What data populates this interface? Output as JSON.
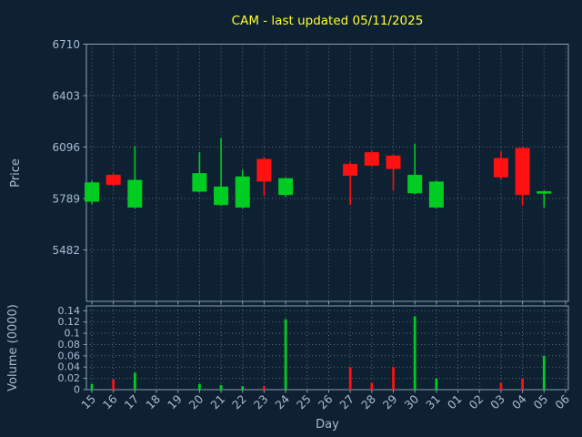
{
  "window_title": "CAM - last updated 05/11/2025",
  "chart_data": {
    "type": "candlestick",
    "title": "CAM - last updated 05/11/2025",
    "xlabel": "Day",
    "legend": "none",
    "grid": "dotted",
    "price_axis": {
      "label": "Price",
      "ticks": [
        5482,
        5789,
        6096,
        6403,
        6710
      ],
      "range": [
        5175,
        6710
      ]
    },
    "volume_axis": {
      "label": "Volume (0000)",
      "ticks": [
        0,
        0.02,
        0.04,
        0.06,
        0.08,
        0.1,
        0.12,
        0.14
      ],
      "range": [
        0,
        0.1485
      ]
    },
    "x_ticks": [
      "15",
      "16",
      "17",
      "18",
      "19",
      "20",
      "21",
      "22",
      "23",
      "24",
      "25",
      "26",
      "27",
      "28",
      "29",
      "30",
      "31",
      "01",
      "02",
      "03",
      "04",
      "05",
      "06"
    ],
    "colors": {
      "up": "#00cc22",
      "down": "#ff1111",
      "background": "#0e2132",
      "title": "#ffff33",
      "axis_text": "#a8bcd4",
      "spine": "#8aa0b6",
      "grid": "#93a6b8"
    },
    "candles": [
      {
        "day": "15",
        "open": 5770,
        "high": 5895,
        "low": 5755,
        "close": 5885,
        "volume": 0.01
      },
      {
        "day": "16",
        "open": 5930,
        "high": 5940,
        "low": 5865,
        "close": 5870,
        "volume": 0.018
      },
      {
        "day": "17",
        "open": 5735,
        "high": 6100,
        "low": 5730,
        "close": 5900,
        "volume": 0.03
      },
      {
        "day": "20",
        "open": 5830,
        "high": 6065,
        "low": 5825,
        "close": 5940,
        "volume": 0.01
      },
      {
        "day": "21",
        "open": 5750,
        "high": 6150,
        "low": 5745,
        "close": 5860,
        "volume": 0.008
      },
      {
        "day": "22",
        "open": 5735,
        "high": 5960,
        "low": 5730,
        "close": 5920,
        "volume": 0.006
      },
      {
        "day": "23",
        "open": 6025,
        "high": 6035,
        "low": 5805,
        "close": 5890,
        "volume": 0.006
      },
      {
        "day": "24",
        "open": 5810,
        "high": 5915,
        "low": 5800,
        "close": 5910,
        "volume": 0.125
      },
      {
        "day": "27",
        "open": 5995,
        "high": 6005,
        "low": 5750,
        "close": 5925,
        "volume": 0.04
      },
      {
        "day": "28",
        "open": 6065,
        "high": 6070,
        "low": 5980,
        "close": 5985,
        "volume": 0.012
      },
      {
        "day": "29",
        "open": 6045,
        "high": 6050,
        "low": 5835,
        "close": 5965,
        "volume": 0.04
      },
      {
        "day": "30",
        "open": 5820,
        "high": 6115,
        "low": 5815,
        "close": 5930,
        "volume": 0.13
      },
      {
        "day": "31",
        "open": 5735,
        "high": 5895,
        "low": 5730,
        "close": 5890,
        "volume": 0.02
      },
      {
        "day": "03",
        "open": 6030,
        "high": 6070,
        "low": 5905,
        "close": 5915,
        "volume": 0.012
      },
      {
        "day": "04",
        "open": 6090,
        "high": 6095,
        "low": 5745,
        "close": 5810,
        "volume": 0.02
      },
      {
        "day": "05",
        "open": 5818,
        "high": 5835,
        "low": 5735,
        "close": 5832,
        "volume": 0.06
      }
    ]
  }
}
